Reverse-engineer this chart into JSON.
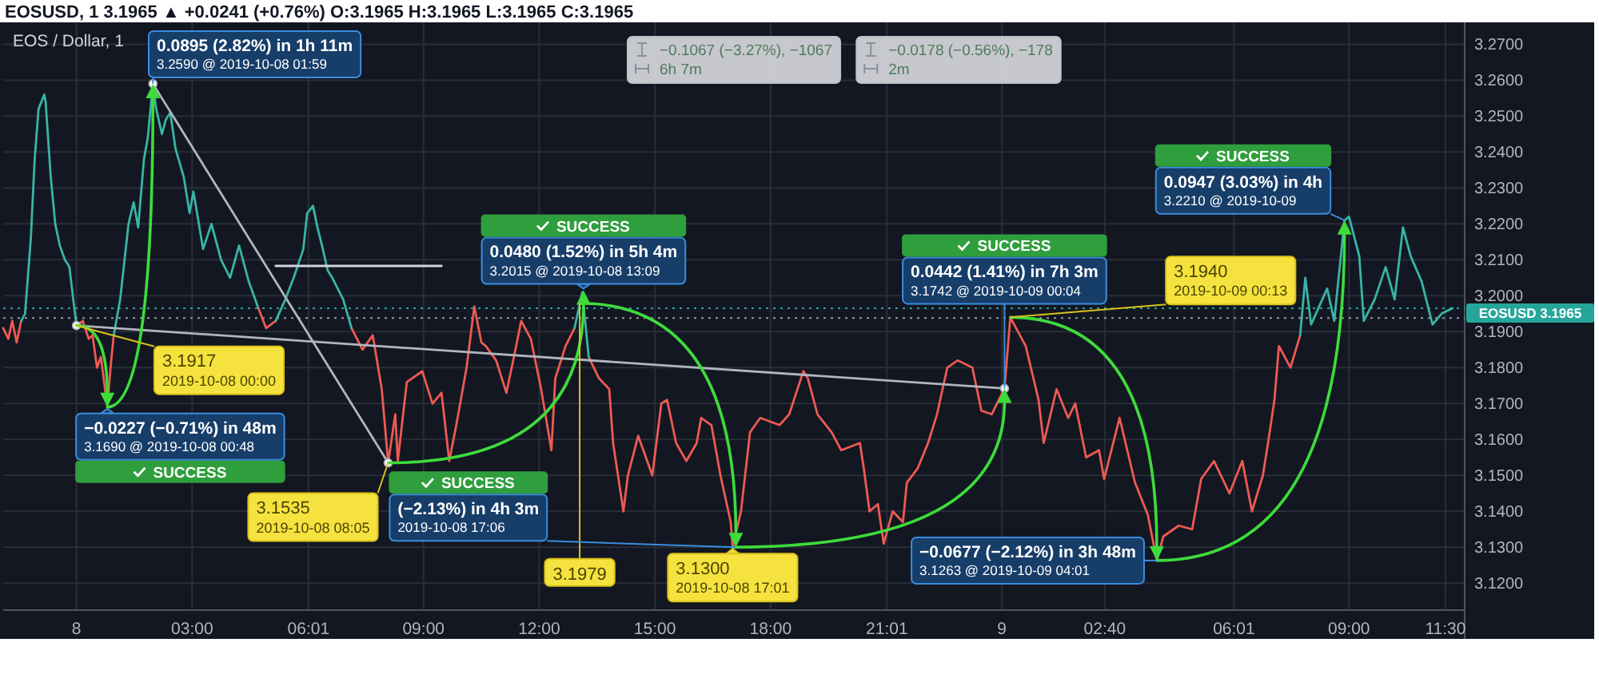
{
  "chart_data": {
    "type": "line",
    "title": "EOSUSD, 1 3.1965 ▲ +0.0241 (+0.76%) O:3.1965 H:3.1965 L:3.1965 C:3.1965",
    "subtitle": "EOS / Dollar, 1",
    "x": [
      "2019-10-07T22:06",
      "2019-10-07T22:14",
      "2019-10-07T22:20",
      "2019-10-07T22:27",
      "2019-10-07T22:34",
      "2019-10-07T22:40",
      "2019-10-07T22:49",
      "2019-10-07T22:55",
      "2019-10-07T23:01",
      "2019-10-07T23:10",
      "2019-10-07T23:12",
      "2019-10-07T23:20",
      "2019-10-07T23:27",
      "2019-10-07T23:34",
      "2019-10-07T23:42",
      "2019-10-07T23:49",
      "2019-10-07T23:55",
      "2019-10-08T00:00",
      "2019-10-08T00:10",
      "2019-10-08T00:19",
      "2019-10-08T00:25",
      "2019-10-08T00:32",
      "2019-10-08T00:38",
      "2019-10-08T00:48",
      "2019-10-08T00:53",
      "2019-10-08T00:58",
      "2019-10-08T01:08",
      "2019-10-08T01:21",
      "2019-10-08T01:29",
      "2019-10-08T01:36",
      "2019-10-08T01:45",
      "2019-10-08T01:51",
      "2019-10-08T01:59",
      "2019-10-08T02:04",
      "2019-10-08T02:13",
      "2019-10-08T02:19",
      "2019-10-08T02:26",
      "2019-10-08T02:34",
      "2019-10-08T02:47",
      "2019-10-08T02:56",
      "2019-10-08T03:02",
      "2019-10-08T03:17",
      "2019-10-08T03:30",
      "2019-10-08T03:45",
      "2019-10-08T03:59",
      "2019-10-08T04:13",
      "2019-10-08T04:28",
      "2019-10-08T04:42",
      "2019-10-08T04:55",
      "2019-10-08T05:10",
      "2019-10-08T05:25",
      "2019-10-08T05:38",
      "2019-10-08T05:53",
      "2019-10-08T05:59",
      "2019-10-08T06:08",
      "2019-10-08T06:15",
      "2019-10-08T06:22",
      "2019-10-08T06:31",
      "2019-10-08T06:38",
      "2019-10-08T06:55",
      "2019-10-08T07:08",
      "2019-10-08T07:25",
      "2019-10-08T07:41",
      "2019-10-08T07:55",
      "2019-10-08T08:05",
      "2019-10-08T08:16",
      "2019-10-08T08:20",
      "2019-10-08T08:34",
      "2019-10-08T08:58",
      "2019-10-08T09:14",
      "2019-10-08T09:28",
      "2019-10-08T09:40",
      "2019-10-08T09:51",
      "2019-10-08T10:07",
      "2019-10-08T10:19",
      "2019-10-08T10:30",
      "2019-10-08T10:37",
      "2019-10-08T10:53",
      "2019-10-08T11:09",
      "2019-10-08T11:23",
      "2019-10-08T11:32",
      "2019-10-08T11:47",
      "2019-10-08T12:03",
      "2019-10-08T12:19",
      "2019-10-08T12:25",
      "2019-10-08T12:41",
      "2019-10-08T12:55",
      "2019-10-08T13:07",
      "2019-10-08T13:17",
      "2019-10-08T13:33",
      "2019-10-08T13:49",
      "2019-10-08T13:55",
      "2019-10-08T14:11",
      "2019-10-08T14:18",
      "2019-10-08T14:34",
      "2019-10-08T14:56",
      "2019-10-08T15:10",
      "2019-10-08T15:19",
      "2019-10-08T15:33",
      "2019-10-08T15:49",
      "2019-10-08T16:05",
      "2019-10-08T16:12",
      "2019-10-08T16:28",
      "2019-10-08T16:42",
      "2019-10-08T16:58",
      "2019-10-08T17:01",
      "2019-10-08T17:14",
      "2019-10-08T17:28",
      "2019-10-08T17:44",
      "2019-10-08T18:14",
      "2019-10-08T18:29",
      "2019-10-08T18:51",
      "2019-10-08T18:58",
      "2019-10-08T19:13",
      "2019-10-08T19:35",
      "2019-10-08T19:50",
      "2019-10-08T20:19",
      "2019-10-08T20:25",
      "2019-10-08T20:34",
      "2019-10-08T20:47",
      "2019-10-08T20:56",
      "2019-10-08T21:10",
      "2019-10-08T21:26",
      "2019-10-08T21:32",
      "2019-10-08T21:49",
      "2019-10-08T22:05",
      "2019-10-08T22:19",
      "2019-10-08T22:35",
      "2019-10-08T22:51",
      "2019-10-08T23:14",
      "2019-10-08T23:28",
      "2019-10-08T23:44",
      "2019-10-09T00:04",
      "2019-10-09T00:13",
      "2019-10-09T00:37",
      "2019-10-09T00:57",
      "2019-10-09T01:05",
      "2019-10-09T01:25",
      "2019-10-09T01:43",
      "2019-10-09T01:54",
      "2019-10-09T02:11",
      "2019-10-09T02:31",
      "2019-10-09T02:39",
      "2019-10-09T03:03",
      "2019-10-09T03:27",
      "2019-10-09T03:47",
      "2019-10-09T04:01",
      "2019-10-09T04:11",
      "2019-10-09T04:35",
      "2019-10-09T04:56",
      "2019-10-09T05:10",
      "2019-10-09T05:30",
      "2019-10-09T05:54",
      "2019-10-09T06:14",
      "2019-10-09T06:29",
      "2019-10-09T06:46",
      "2019-10-09T06:54",
      "2019-10-09T07:04",
      "2019-10-09T07:11",
      "2019-10-09T07:29",
      "2019-10-09T07:44",
      "2019-10-09T07:52",
      "2019-10-09T08:01",
      "2019-10-09T08:26",
      "2019-10-09T08:37",
      "2019-10-09T08:53",
      "2019-10-09T09:00",
      "2019-10-09T09:16",
      "2019-10-09T09:23",
      "2019-10-09T09:40",
      "2019-10-09T09:57",
      "2019-10-09T10:11",
      "2019-10-09T10:24",
      "2019-10-09T10:36",
      "2019-10-09T10:53",
      "2019-10-09T11:10",
      "2019-10-09T11:24",
      "2019-10-09T11:41"
    ],
    "xlim": [
      "2019-10-07T22:06",
      "2019-10-09T12:00"
    ],
    "xticks": [
      {
        "value": "2019-10-08T00:00",
        "label": "8"
      },
      {
        "value": "2019-10-08T03:00",
        "label": "03:00"
      },
      {
        "value": "2019-10-08T06:01",
        "label": "06:01"
      },
      {
        "value": "2019-10-08T09:00",
        "label": "09:00"
      },
      {
        "value": "2019-10-08T12:00",
        "label": "12:00"
      },
      {
        "value": "2019-10-08T15:00",
        "label": "15:00"
      },
      {
        "value": "2019-10-08T18:00",
        "label": "18:00"
      },
      {
        "value": "2019-10-08T21:01",
        "label": "21:01"
      },
      {
        "value": "2019-10-09T00:00",
        "label": "9"
      },
      {
        "value": "2019-10-09T02:40",
        "label": "02:40"
      },
      {
        "value": "2019-10-09T06:01",
        "label": "06:01"
      },
      {
        "value": "2019-10-09T09:00",
        "label": "09:00"
      },
      {
        "value": "2019-10-09T11:30",
        "label": "11:30"
      }
    ],
    "ylim": [
      3.1125,
      3.2752
    ],
    "yticks": [
      {
        "value": 3.12,
        "label": "3.1200"
      },
      {
        "value": 3.13,
        "label": "3.1300"
      },
      {
        "value": 3.14,
        "label": "3.1400"
      },
      {
        "value": 3.15,
        "label": "3.1500"
      },
      {
        "value": 3.16,
        "label": "3.1600"
      },
      {
        "value": 3.17,
        "label": "3.1700"
      },
      {
        "value": 3.18,
        "label": "3.1800"
      },
      {
        "value": 3.19,
        "label": "3.1900"
      },
      {
        "value": 3.2,
        "label": "3.2000"
      },
      {
        "value": 3.21,
        "label": "3.2100"
      },
      {
        "value": 3.22,
        "label": "3.2200"
      },
      {
        "value": 3.23,
        "label": "3.2300"
      },
      {
        "value": 3.24,
        "label": "3.2400"
      },
      {
        "value": 3.25,
        "label": "3.2500"
      },
      {
        "value": 3.26,
        "label": "3.2600"
      },
      {
        "value": 3.27,
        "label": "3.2700"
      }
    ],
    "grid": true,
    "series": [
      {
        "color": "#ee5a52",
        "values": [
          3.191,
          3.188,
          3.193,
          3.187,
          3.193,
          null,
          null,
          null,
          null,
          null,
          null,
          null,
          null,
          null,
          null,
          null,
          null,
          3.1917,
          3.193,
          3.188,
          3.189,
          3.18,
          3.183,
          3.169,
          3.18,
          3.189,
          null,
          null,
          null,
          null,
          null,
          null,
          null,
          null,
          null,
          null,
          null,
          null,
          null,
          null,
          null,
          null,
          null,
          null,
          null,
          null,
          null,
          3.197,
          3.191,
          3.193,
          null,
          null,
          null,
          null,
          null,
          null,
          null,
          null,
          null,
          null,
          3.191,
          3.185,
          3.189,
          3.174,
          3.1535,
          3.167,
          3.154,
          3.176,
          3.179,
          3.17,
          3.173,
          3.154,
          3.164,
          3.18,
          3.197,
          3.187,
          3.186,
          3.182,
          3.173,
          3.185,
          3.193,
          3.188,
          3.174,
          3.157,
          3.177,
          3.186,
          3.191,
          null,
          3.183,
          3.177,
          3.174,
          3.159,
          3.14,
          3.15,
          3.161,
          3.15,
          3.17,
          3.171,
          3.159,
          3.154,
          3.159,
          3.166,
          3.164,
          3.15,
          3.137,
          3.13,
          3.14,
          3.162,
          3.166,
          3.164,
          3.167,
          3.179,
          3.177,
          3.167,
          3.162,
          3.157,
          3.159,
          3.152,
          3.14,
          3.142,
          3.131,
          3.14,
          3.137,
          3.148,
          3.152,
          3.159,
          3.167,
          3.18,
          3.182,
          3.18,
          3.168,
          3.167,
          3.1742,
          3.194,
          3.186,
          3.171,
          3.159,
          3.174,
          3.166,
          3.17,
          3.155,
          3.157,
          3.149,
          3.166,
          3.148,
          3.139,
          3.1263,
          3.133,
          3.136,
          3.135,
          3.149,
          3.154,
          3.145,
          3.154,
          3.14,
          3.15,
          3.159,
          3.171,
          3.186,
          3.18,
          3.189,
          null,
          null,
          null,
          null,
          null,
          null,
          null,
          null,
          null,
          null,
          null,
          null,
          null,
          null,
          null,
          null,
          null
        ]
      },
      {
        "color": "#37b5a5",
        "values": [
          null,
          null,
          null,
          null,
          3.193,
          3.195,
          3.216,
          3.238,
          3.252,
          3.256,
          3.254,
          3.233,
          3.22,
          3.214,
          3.21,
          3.208,
          3.199,
          3.1917,
          null,
          null,
          null,
          null,
          null,
          null,
          null,
          3.189,
          3.199,
          3.22,
          3.226,
          3.219,
          3.238,
          3.244,
          3.259,
          3.252,
          3.245,
          3.249,
          3.251,
          3.241,
          3.233,
          3.223,
          3.229,
          3.213,
          3.22,
          3.21,
          3.205,
          3.214,
          3.204,
          3.197,
          null,
          3.193,
          3.199,
          3.205,
          3.213,
          3.223,
          3.225,
          3.219,
          3.214,
          3.207,
          3.205,
          3.199,
          3.191,
          null,
          null,
          null,
          null,
          null,
          null,
          null,
          null,
          null,
          null,
          null,
          null,
          null,
          null,
          null,
          null,
          null,
          null,
          null,
          null,
          null,
          null,
          null,
          null,
          null,
          3.191,
          3.201,
          3.183,
          null,
          null,
          null,
          null,
          null,
          null,
          null,
          null,
          null,
          null,
          null,
          null,
          null,
          null,
          null,
          null,
          null,
          null,
          null,
          null,
          null,
          null,
          null,
          null,
          null,
          null,
          null,
          null,
          null,
          null,
          null,
          null,
          null,
          null,
          null,
          null,
          null,
          null,
          null,
          null,
          null,
          null,
          null,
          null,
          null,
          null,
          null,
          null,
          null,
          null,
          null,
          null,
          null,
          null,
          null,
          null,
          null,
          null,
          null,
          null,
          null,
          null,
          null,
          null,
          null,
          null,
          null,
          null,
          null,
          null,
          null,
          3.189,
          3.205,
          3.192,
          3.202,
          3.193,
          3.221,
          3.222,
          3.211,
          3.193,
          3.199,
          3.208,
          3.199,
          3.219,
          3.211,
          3.204,
          3.192,
          3.195,
          3.1965
        ]
      },
      {
        "color": "#b2b5be",
        "marker": "circle",
        "x": [
          "2019-10-08T00:00",
          "2019-10-09T00:04"
        ],
        "values": [
          3.1917,
          3.1742
        ]
      },
      {
        "color": "#b2b5be",
        "marker": "circle",
        "x": [
          "2019-10-08T01:59",
          "2019-10-08T08:05"
        ],
        "values": [
          3.259,
          3.1535
        ]
      },
      {
        "color": "#d1d4dc",
        "x": [
          "2019-10-08T05:10",
          "2019-10-08T09:28"
        ],
        "values": [
          3.2083,
          3.2083
        ]
      }
    ],
    "ref_lines": [
      {
        "axis": "y",
        "value": 3.1938,
        "color": "#9598a1",
        "line_style": "dotted"
      },
      {
        "axis": "y",
        "value": 3.1965,
        "label": "EOSUSD 3.1965",
        "color": "#26a69a",
        "line_style": "dotted"
      }
    ],
    "annotations": [
      {
        "text": "3.1917\n2019-10-08 00:00",
        "x": "2019-10-08T00:00",
        "y": 3.1917
      },
      {
        "text": "−0.0227 (−0.71%) in 48m\n3.1690 @ 2019-10-08 00:48",
        "x": "2019-10-08T00:48",
        "y": 3.169
      },
      "SUCCESS",
      {
        "text": "0.0895 (2.82%) in 1h 11m\n3.2590 @ 2019-10-08 01:59",
        "x": "2019-10-08T01:59",
        "y": 3.259
      },
      "−0.1067 (−3.27%), −1067\n6h 7m",
      {
        "text": "3.1535\n2019-10-08 08:05",
        "x": "2019-10-08T08:05",
        "y": 3.1535
      },
      {
        "text": "0.0480 (1.52%) in 5h 4m\n3.2015 @ 2019-10-08 13:09",
        "x": "2019-10-08T13:09",
        "y": 3.2015
      },
      "SUCCESS",
      {
        "text": "3.1979",
        "x": "2019-10-08T13:03",
        "y": 3.1979
      },
      "−0.0178 (−0.56%), −178\n2m",
      {
        "text": "(−2.13%) in 4h 3m\n2019-10-08 17:06",
        "x": "2019-10-08T17:06",
        "y": 3.13
      },
      "SUCCESS",
      {
        "text": "3.1300\n2019-10-08 17:01",
        "x": "2019-10-08T17:01",
        "y": 3.13
      },
      {
        "text": "0.0442 (1.41%) in 7h 3m\n3.1742 @ 2019-10-09 00:04",
        "x": "2019-10-09T00:04",
        "y": 3.1742
      },
      "SUCCESS",
      {
        "text": "3.1940\n2019-10-09 00:13",
        "x": "2019-10-09T00:13",
        "y": 3.194
      },
      {
        "text": "−0.0677 (−2.12%) in 3h 48m\n3.1263 @ 2019-10-09 04:01",
        "x": "2019-10-09T04:01",
        "y": 3.1263
      },
      {
        "text": "0.0947 (3.03%) in 4h\n3.2210 @ 2019-10-09",
        "x": "2019-10-09T08:53",
        "y": 3.221
      },
      "SUCCESS"
    ]
  }
}
